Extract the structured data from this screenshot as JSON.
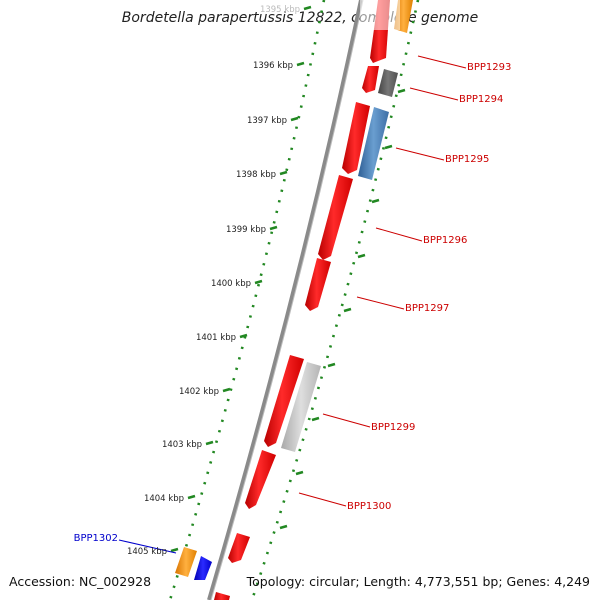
{
  "title": "Bordetella parapertussis 12822, complete genome",
  "footer": {
    "accession": "Accession: NC_002928",
    "stats": "Topology: circular; Length: 4,773,551 bp; Genes: 4,249"
  },
  "colors": {
    "backbone": "#8a8a8a",
    "ticks": "#228822",
    "forward_gene": "#ff0000",
    "reverse_gene": "#4a80b8",
    "label": "#cc0000",
    "highlight_label": "#0000cc"
  },
  "kbp_labels": [
    {
      "label": "1395 kbp",
      "faded": true
    },
    {
      "label": "1396 kbp"
    },
    {
      "label": "1397 kbp"
    },
    {
      "label": "1398 kbp"
    },
    {
      "label": "1399 kbp"
    },
    {
      "label": "1400 kbp"
    },
    {
      "label": "1401 kbp"
    },
    {
      "label": "1402 kbp"
    },
    {
      "label": "1403 kbp"
    },
    {
      "label": "1404 kbp"
    },
    {
      "label": "1405 kbp"
    }
  ],
  "gene_labels": [
    {
      "name": "BPP1293"
    },
    {
      "name": "BPP1294"
    },
    {
      "name": "BPP1295"
    },
    {
      "name": "BPP1296"
    },
    {
      "name": "BPP1297"
    },
    {
      "name": "BPP1299"
    },
    {
      "name": "BPP1300"
    },
    {
      "name": "BPP1302",
      "highlight": true
    }
  ]
}
